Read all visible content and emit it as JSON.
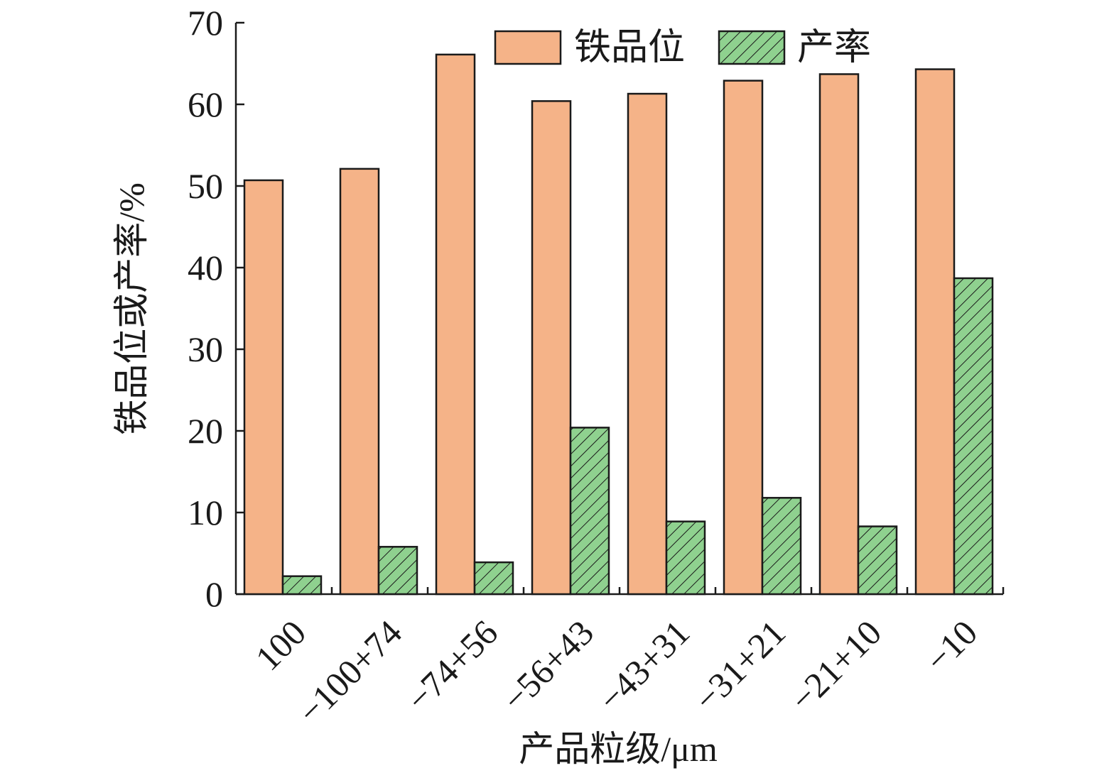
{
  "chart_data": {
    "type": "bar",
    "xlabel": "产品粒级/μm",
    "ylabel": "铁品位或产率/%",
    "ylim": [
      0,
      70
    ],
    "yticks": [
      0,
      10,
      20,
      30,
      40,
      50,
      60,
      70
    ],
    "categories": [
      "100",
      "−100+74",
      "−74+56",
      "−56+43",
      "−43+31",
      "−31+21",
      "−21+10",
      "−10"
    ],
    "series": [
      {
        "name": "铁品位",
        "values": [
          50.7,
          52.1,
          66.1,
          60.4,
          61.3,
          62.9,
          63.7,
          64.3
        ],
        "color": "#f5b388",
        "pattern": "solid"
      },
      {
        "name": "产率",
        "values": [
          2.2,
          5.8,
          3.9,
          20.4,
          8.9,
          11.8,
          8.3,
          38.7
        ],
        "color": "#8fd18f",
        "pattern": "diagonal-hatch"
      }
    ],
    "legend_position": "top-right",
    "grid": false
  }
}
